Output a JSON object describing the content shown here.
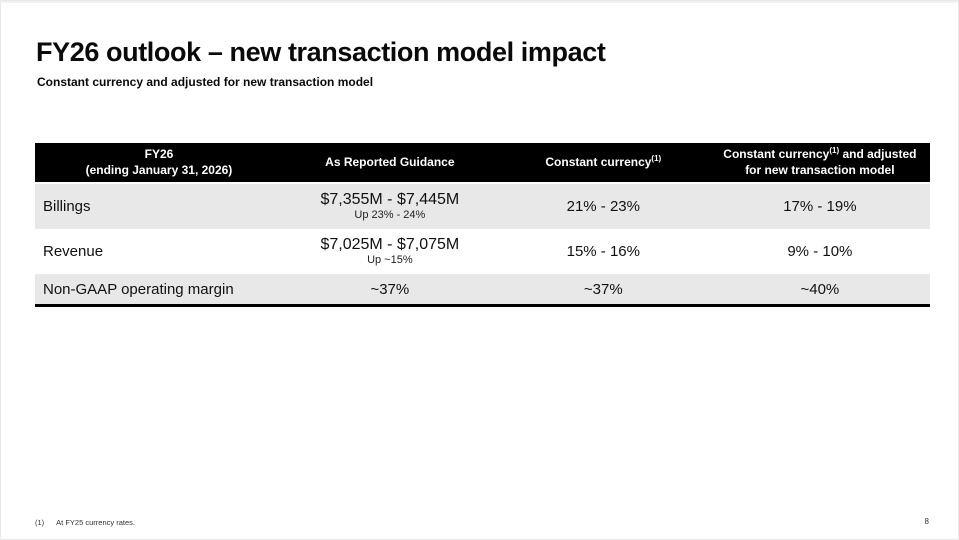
{
  "slide": {
    "title": "FY26 outlook – new transaction model impact",
    "subtitle": "Constant currency and adjusted for new transaction model",
    "page_number": "8",
    "footnote_marker": "(1)",
    "footnote_text": "At FY25 currency rates."
  },
  "table": {
    "header": {
      "col1_line1": "FY26",
      "col1_line2": "(ending January 31, 2026)",
      "col2": "As Reported Guidance",
      "col3_main": "Constant currency",
      "col3_sup": "(1)",
      "col4_main": "Constant currency",
      "col4_sup": "(1)",
      "col4_rest": " and adjusted",
      "col4_line2": "for new transaction model"
    },
    "rows": [
      {
        "label": "Billings",
        "guidance": "$7,355M - $7,445M",
        "guidance_note": "Up 23% - 24%",
        "constant_currency": "21% - 23%",
        "cc_adjusted": "17% - 19%"
      },
      {
        "label": "Revenue",
        "guidance": "$7,025M - $7,075M",
        "guidance_note": "Up ~15%",
        "constant_currency": "15% - 16%",
        "cc_adjusted": "9% - 10%"
      },
      {
        "label": "Non-GAAP operating margin",
        "guidance": "~37%",
        "guidance_note": "",
        "constant_currency": "~37%",
        "cc_adjusted": "~40%"
      }
    ]
  },
  "colors": {
    "header_bg": "#000000",
    "alt_row_bg": "#e8e8e8",
    "table_bottom_border": "#000000",
    "text": "#111111"
  }
}
